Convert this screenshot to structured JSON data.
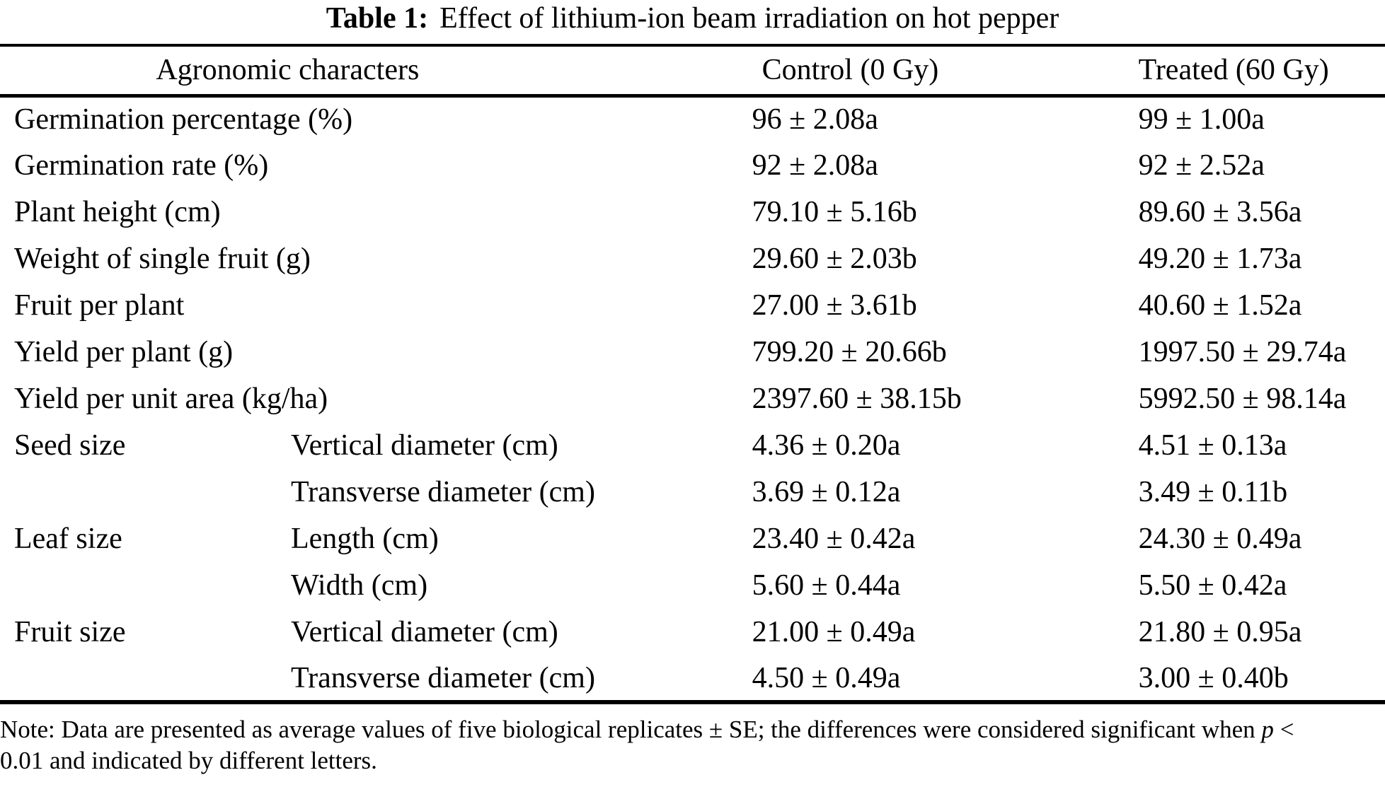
{
  "table": {
    "title_label": "Table 1:",
    "title_text": "Effect of lithium-ion beam irradiation on hot pepper",
    "columns": {
      "characters": "Agronomic characters",
      "control": "Control (0 Gy)",
      "treated": "Treated (60 Gy)"
    },
    "rows": [
      {
        "label": "Germination percentage (%)",
        "control": "96 ± 2.08a",
        "treated": "99 ± 1.00a"
      },
      {
        "label": "Germination rate (%)",
        "control": "92 ± 2.08a",
        "treated": "92 ± 2.52a"
      },
      {
        "label": "Plant height (cm)",
        "control": "79.10 ± 5.16b",
        "treated": "89.60 ± 3.56a"
      },
      {
        "label": "Weight of single fruit (g)",
        "control": "29.60 ± 2.03b",
        "treated": "49.20 ± 1.73a"
      },
      {
        "label": "Fruit per plant",
        "control": "27.00 ± 3.61b",
        "treated": "40.60 ± 1.52a"
      },
      {
        "label": "Yield per plant (g)",
        "control": "799.20 ± 20.66b",
        "treated": "1997.50 ± 29.74a"
      },
      {
        "label": "Yield per unit area (kg/ha)",
        "control": "2397.60 ± 38.15b",
        "treated": "5992.50 ± 98.14a"
      },
      {
        "group": "Seed size",
        "trait": "Vertical diameter (cm)",
        "control": "4.36 ± 0.20a",
        "treated": "4.51 ± 0.13a"
      },
      {
        "group": "",
        "trait": "Transverse diameter (cm)",
        "control": "3.69 ± 0.12a",
        "treated": "3.49 ± 0.11b"
      },
      {
        "group": "Leaf size",
        "trait": "Length (cm)",
        "control": "23.40 ± 0.42a",
        "treated": "24.30 ± 0.49a"
      },
      {
        "group": "",
        "trait": "Width (cm)",
        "control": "5.60 ± 0.44a",
        "treated": "5.50 ± 0.42a"
      },
      {
        "group": "Fruit size",
        "trait": "Vertical diameter (cm)",
        "control": "21.00 ± 0.49a",
        "treated": "21.80 ± 0.95a"
      },
      {
        "group": "",
        "trait": "Transverse diameter (cm)",
        "control": "4.50 ± 0.49a",
        "treated": "3.00 ± 0.40b"
      }
    ]
  },
  "note": {
    "line1_before_p": "Note: Data are presented as average values of five biological replicates ± SE; the differences were considered significant when ",
    "p": "p",
    "line1_after_p": " <",
    "line2": "0.01 and indicated by different letters."
  },
  "chart_data": {
    "type": "table",
    "title": "Table 1: Effect of lithium-ion beam irradiation on hot pepper",
    "columns": [
      "Agronomic characters",
      "",
      "Control (0 Gy)",
      "Treated (60 Gy)"
    ],
    "rows": [
      [
        "Germination percentage (%)",
        "",
        "96 ± 2.08a",
        "99 ± 1.00a"
      ],
      [
        "Germination rate (%)",
        "",
        "92 ± 2.08a",
        "92 ± 2.52a"
      ],
      [
        "Plant height (cm)",
        "",
        "79.10 ± 5.16b",
        "89.60 ± 3.56a"
      ],
      [
        "Weight of single fruit (g)",
        "",
        "29.60 ± 2.03b",
        "49.20 ± 1.73a"
      ],
      [
        "Fruit per plant",
        "",
        "27.00 ± 3.61b",
        "40.60 ± 1.52a"
      ],
      [
        "Yield per plant (g)",
        "",
        "799.20 ± 20.66b",
        "1997.50 ± 29.74a"
      ],
      [
        "Yield per unit area (kg/ha)",
        "",
        "2397.60 ± 38.15b",
        "5992.50 ± 98.14a"
      ],
      [
        "Seed size",
        "Vertical diameter (cm)",
        "4.36 ± 0.20a",
        "4.51 ± 0.13a"
      ],
      [
        "",
        "Transverse diameter (cm)",
        "3.69 ± 0.12a",
        "3.49 ± 0.11b"
      ],
      [
        "Leaf size",
        "Length (cm)",
        "23.40 ± 0.42a",
        "24.30 ± 0.49a"
      ],
      [
        "",
        "Width (cm)",
        "5.60 ± 0.44a",
        "5.50 ± 0.42a"
      ],
      [
        "Fruit size",
        "Vertical diameter (cm)",
        "21.00 ± 0.49a",
        "21.80 ± 0.95a"
      ],
      [
        "",
        "Transverse diameter (cm)",
        "4.50 ± 0.49a",
        "3.00 ± 0.40b"
      ]
    ],
    "note": "Note: Data are presented as average values of five biological replicates ± SE; the differences were considered significant when p < 0.01 and indicated by different letters."
  }
}
